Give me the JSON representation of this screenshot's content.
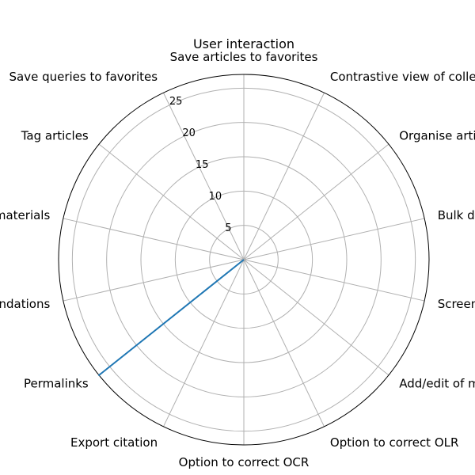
{
  "chart_data": {
    "type": "radar",
    "title": "User interaction",
    "categories": [
      "Save articles to favorites",
      "Contrastive view of collections",
      "Organise articles in collections",
      "Bulk download",
      "Screenshot tool",
      "Add/edit of metadata",
      "Option to correct OLR",
      "Option to correct OCR",
      "Export citation",
      "Permalinks",
      "Save recommendations",
      "Track of viewed materials",
      "Tag articles",
      "Save queries to favorites"
    ],
    "series": [
      {
        "values": [
          0,
          0,
          0,
          0,
          0,
          0,
          0,
          0,
          0,
          27,
          0,
          0,
          0,
          0
        ],
        "color": "#1f77b4"
      }
    ],
    "rlim": [
      0,
      27
    ],
    "rticks": [
      5,
      10,
      15,
      20,
      25
    ],
    "grid": true
  }
}
